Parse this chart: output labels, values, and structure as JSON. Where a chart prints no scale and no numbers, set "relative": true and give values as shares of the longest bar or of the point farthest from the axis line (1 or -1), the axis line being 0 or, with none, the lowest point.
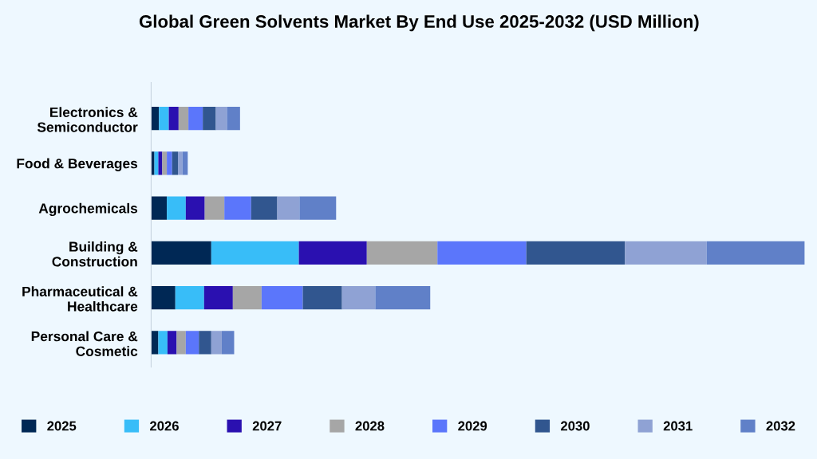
{
  "chart_data": {
    "type": "bar",
    "orientation": "horizontal",
    "stacked": true,
    "relative": true,
    "title": "Global Green Solvents Market By End Use 2025-2032 (USD Million)",
    "categories": [
      "Electronics &\nSemiconductor",
      "Food & Beverages",
      "Agrochemicals",
      "Building &\nConstruction",
      "Pharmaceutical &\nHealthcare",
      "Personal Care &\nCosmetic"
    ],
    "legend": "bottom",
    "series": [
      {
        "name": "2025",
        "color": "#002855",
        "values": [
          0.012,
          0.005,
          0.024,
          0.092,
          0.037,
          0.011
        ]
      },
      {
        "name": "2026",
        "color": "#38bdf8",
        "values": [
          0.015,
          0.006,
          0.029,
          0.134,
          0.044,
          0.014
        ]
      },
      {
        "name": "2027",
        "color": "#2a10b0",
        "values": [
          0.015,
          0.006,
          0.029,
          0.104,
          0.044,
          0.014
        ]
      },
      {
        "name": "2028",
        "color": "#a6a6a6",
        "values": [
          0.015,
          0.007,
          0.03,
          0.108,
          0.044,
          0.014
        ]
      },
      {
        "name": "2029",
        "color": "#5b76fb",
        "values": [
          0.022,
          0.008,
          0.041,
          0.136,
          0.063,
          0.02
        ]
      },
      {
        "name": "2030",
        "color": "#31568f",
        "values": [
          0.02,
          0.009,
          0.04,
          0.151,
          0.06,
          0.019
        ]
      },
      {
        "name": "2031",
        "color": "#8fa2d4",
        "values": [
          0.017,
          0.007,
          0.034,
          0.125,
          0.051,
          0.016
        ]
      },
      {
        "name": "2032",
        "color": "#6080c8",
        "values": [
          0.02,
          0.008,
          0.056,
          0.15,
          0.084,
          0.019
        ]
      }
    ]
  }
}
